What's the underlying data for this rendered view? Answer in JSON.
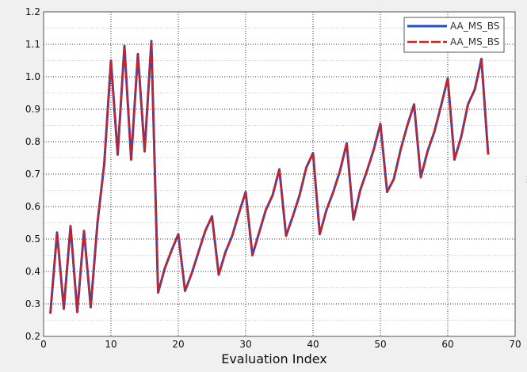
{
  "chart_data": {
    "type": "line",
    "xlabel": "Evaluation Index",
    "ylabel": "",
    "xlim": [
      0,
      70
    ],
    "ylim": [
      0.2,
      1.2
    ],
    "x_ticks": [
      0,
      10,
      20,
      30,
      40,
      50,
      60,
      70
    ],
    "y_ticks": [
      0.2,
      0.3,
      0.4,
      0.5,
      0.6,
      0.7,
      0.8,
      0.9,
      1.0,
      1.1,
      1.2
    ],
    "grid": true,
    "legend_position": "top-right",
    "x": [
      1,
      2,
      3,
      4,
      5,
      6,
      7,
      8,
      9,
      10,
      11,
      12,
      13,
      14,
      15,
      16,
      17,
      18,
      19,
      20,
      21,
      22,
      23,
      24,
      25,
      26,
      27,
      28,
      29,
      30,
      31,
      32,
      33,
      34,
      35,
      36,
      37,
      38,
      39,
      40,
      41,
      42,
      43,
      44,
      45,
      46,
      47,
      48,
      49,
      50,
      51,
      52,
      53,
      54,
      55,
      56,
      57,
      58,
      59,
      60,
      61,
      62,
      63,
      64,
      65,
      66
    ],
    "series": [
      {
        "name": "AA_MS_BS",
        "color": "#2050d0",
        "dash": "solid",
        "values": [
          0.27,
          0.52,
          0.285,
          0.54,
          0.275,
          0.525,
          0.29,
          0.55,
          0.73,
          1.05,
          0.76,
          1.095,
          0.745,
          1.07,
          0.77,
          1.11,
          0.335,
          0.41,
          0.465,
          0.515,
          0.34,
          0.395,
          0.46,
          0.525,
          0.57,
          0.39,
          0.46,
          0.51,
          0.58,
          0.645,
          0.45,
          0.52,
          0.59,
          0.635,
          0.715,
          0.51,
          0.57,
          0.635,
          0.72,
          0.765,
          0.515,
          0.59,
          0.645,
          0.71,
          0.795,
          0.56,
          0.65,
          0.71,
          0.775,
          0.855,
          0.645,
          0.685,
          0.775,
          0.85,
          0.915,
          0.69,
          0.77,
          0.83,
          0.91,
          0.995,
          0.745,
          0.815,
          0.915,
          0.96,
          1.055,
          0.76
        ]
      },
      {
        "name": "AA_MS_BS",
        "color": "#cc2222",
        "dash": "dashed",
        "values": [
          0.27,
          0.52,
          0.285,
          0.54,
          0.275,
          0.525,
          0.29,
          0.55,
          0.73,
          1.05,
          0.76,
          1.095,
          0.745,
          1.07,
          0.77,
          1.11,
          0.335,
          0.41,
          0.465,
          0.515,
          0.34,
          0.395,
          0.46,
          0.525,
          0.57,
          0.39,
          0.46,
          0.51,
          0.58,
          0.645,
          0.45,
          0.52,
          0.59,
          0.635,
          0.715,
          0.51,
          0.57,
          0.635,
          0.72,
          0.765,
          0.515,
          0.59,
          0.645,
          0.71,
          0.795,
          0.56,
          0.65,
          0.71,
          0.775,
          0.855,
          0.645,
          0.685,
          0.775,
          0.85,
          0.915,
          0.69,
          0.77,
          0.83,
          0.91,
          0.995,
          0.745,
          0.815,
          0.915,
          0.96,
          1.055,
          0.76
        ]
      }
    ]
  }
}
